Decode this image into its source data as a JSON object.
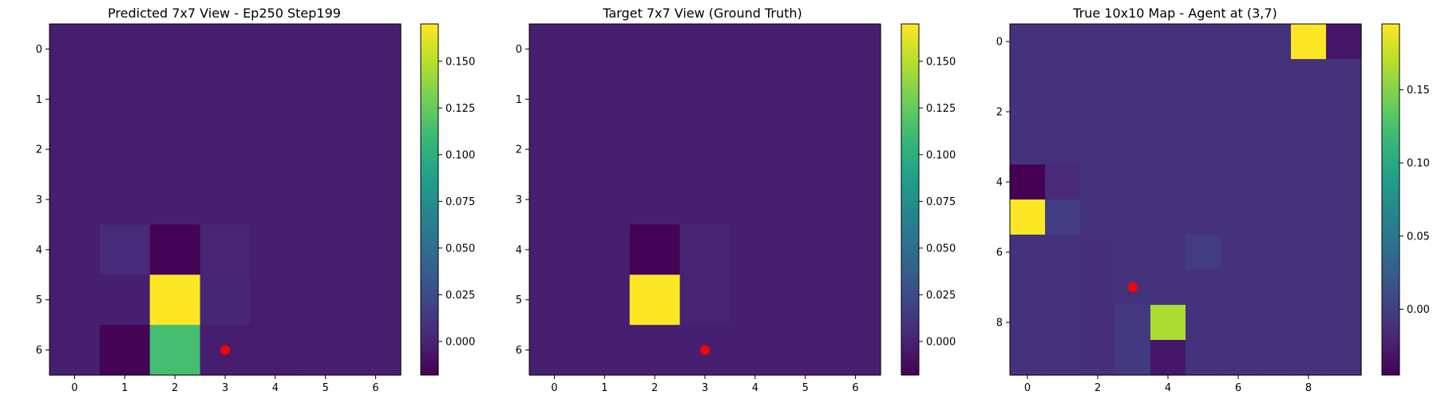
{
  "chart_data": [
    {
      "type": "heatmap",
      "title": "Predicted 7x7 View - Ep250 Step199",
      "x_ticks": [
        "0",
        "1",
        "2",
        "3",
        "4",
        "5",
        "6"
      ],
      "y_ticks": [
        "0",
        "1",
        "2",
        "3",
        "4",
        "5",
        "6"
      ],
      "grid": [
        [
          -0.002,
          -0.002,
          -0.002,
          -0.002,
          -0.002,
          -0.002,
          -0.002
        ],
        [
          -0.002,
          -0.002,
          -0.002,
          -0.002,
          -0.002,
          -0.002,
          -0.002
        ],
        [
          -0.002,
          -0.002,
          -0.002,
          -0.002,
          -0.002,
          -0.002,
          -0.002
        ],
        [
          -0.002,
          -0.002,
          -0.002,
          -0.002,
          -0.002,
          -0.002,
          -0.002
        ],
        [
          -0.002,
          0.004,
          -0.017,
          0.001,
          -0.002,
          -0.002,
          -0.002
        ],
        [
          -0.002,
          -0.002,
          0.17,
          0.002,
          -0.003,
          -0.002,
          -0.002
        ],
        [
          -0.002,
          -0.016,
          0.113,
          -0.003,
          -0.003,
          -0.002,
          -0.002
        ]
      ],
      "vmin": -0.018,
      "vmax": 0.17,
      "colorbar_ticks": [
        "0.150",
        "0.125",
        "0.100",
        "0.075",
        "0.050",
        "0.025",
        "0.000"
      ],
      "colorbar_values": [
        0.15,
        0.125,
        0.1,
        0.075,
        0.05,
        0.025,
        0.0
      ],
      "marker": {
        "x": 3,
        "y": 6,
        "color": "#ff0000"
      },
      "grid_lines": false
    },
    {
      "type": "heatmap",
      "title": "Target 7x7 View (Ground Truth)",
      "x_ticks": [
        "0",
        "1",
        "2",
        "3",
        "4",
        "5",
        "6"
      ],
      "y_ticks": [
        "0",
        "1",
        "2",
        "3",
        "4",
        "5",
        "6"
      ],
      "grid": [
        [
          -0.002,
          -0.002,
          -0.002,
          -0.002,
          -0.002,
          -0.002,
          -0.002
        ],
        [
          -0.002,
          -0.002,
          -0.002,
          -0.002,
          -0.002,
          -0.002,
          -0.002
        ],
        [
          -0.002,
          -0.002,
          -0.002,
          -0.002,
          -0.002,
          -0.002,
          -0.002
        ],
        [
          -0.002,
          -0.002,
          -0.002,
          -0.002,
          -0.002,
          -0.002,
          -0.002
        ],
        [
          -0.002,
          -0.002,
          -0.017,
          0.0,
          -0.002,
          -0.002,
          -0.002
        ],
        [
          -0.002,
          -0.002,
          0.17,
          0.0,
          -0.002,
          -0.002,
          -0.002
        ],
        [
          -0.002,
          -0.002,
          -0.002,
          -0.002,
          -0.002,
          -0.002,
          -0.002
        ]
      ],
      "vmin": -0.018,
      "vmax": 0.17,
      "colorbar_ticks": [
        "0.150",
        "0.125",
        "0.100",
        "0.075",
        "0.050",
        "0.025",
        "0.000"
      ],
      "colorbar_values": [
        0.15,
        0.125,
        0.1,
        0.075,
        0.05,
        0.025,
        0.0
      ],
      "marker": {
        "x": 3,
        "y": 6,
        "color": "#ff0000"
      },
      "grid_lines": false
    },
    {
      "type": "heatmap",
      "title": "True 10x10 Map - Agent at (3,7)",
      "x_ticks": [
        "0",
        "2",
        "4",
        "6",
        "8"
      ],
      "x_tick_values": [
        0,
        2,
        4,
        6,
        8
      ],
      "y_ticks": [
        "0",
        "2",
        "4",
        "6",
        "8"
      ],
      "y_tick_values": [
        0,
        2,
        4,
        6,
        8
      ],
      "grid": [
        [
          -0.01,
          -0.01,
          -0.01,
          -0.01,
          -0.01,
          -0.01,
          -0.01,
          -0.01,
          0.195,
          -0.03
        ],
        [
          -0.01,
          -0.01,
          -0.01,
          -0.01,
          -0.01,
          -0.01,
          -0.01,
          -0.01,
          -0.01,
          -0.01
        ],
        [
          -0.01,
          -0.01,
          -0.01,
          -0.01,
          -0.01,
          -0.01,
          -0.01,
          -0.01,
          -0.01,
          -0.01
        ],
        [
          -0.01,
          -0.01,
          -0.01,
          -0.01,
          -0.01,
          -0.01,
          -0.01,
          -0.01,
          -0.01,
          -0.01
        ],
        [
          -0.045,
          -0.017,
          -0.01,
          -0.01,
          -0.01,
          -0.01,
          -0.01,
          -0.01,
          -0.01,
          -0.01
        ],
        [
          0.195,
          -0.002,
          -0.01,
          -0.01,
          -0.01,
          -0.01,
          -0.01,
          -0.01,
          -0.01,
          -0.01
        ],
        [
          -0.01,
          -0.01,
          -0.012,
          -0.01,
          -0.01,
          -0.002,
          -0.01,
          -0.01,
          -0.01,
          -0.01
        ],
        [
          -0.01,
          -0.01,
          -0.012,
          -0.01,
          -0.01,
          -0.01,
          -0.01,
          -0.01,
          -0.01,
          -0.01
        ],
        [
          -0.01,
          -0.01,
          -0.012,
          -0.005,
          0.165,
          -0.01,
          -0.01,
          -0.01,
          -0.01,
          -0.01
        ],
        [
          -0.01,
          -0.01,
          -0.012,
          -0.005,
          -0.03,
          -0.01,
          -0.01,
          -0.01,
          -0.01,
          -0.01
        ]
      ],
      "vmin": -0.045,
      "vmax": 0.195,
      "colorbar_ticks": [
        "0.15",
        "0.10",
        "0.05",
        "0.00"
      ],
      "colorbar_values": [
        0.15,
        0.1,
        0.05,
        0.0
      ],
      "marker": {
        "x": 3,
        "y": 7,
        "color": "#ff0000"
      },
      "grid_lines": false
    }
  ]
}
